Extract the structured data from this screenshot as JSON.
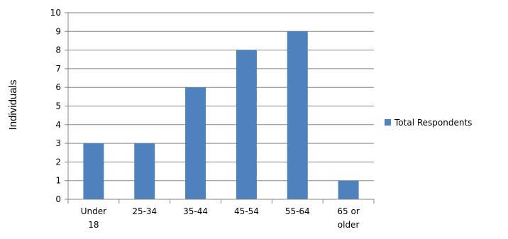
{
  "chart_data": {
    "type": "bar",
    "title": "",
    "xlabel": "",
    "ylabel": "Individuals",
    "categories": [
      [
        "Under",
        "18"
      ],
      [
        "25-34"
      ],
      [
        "35-44"
      ],
      [
        "45-54"
      ],
      [
        "55-64"
      ],
      [
        "65 or",
        "older"
      ]
    ],
    "series": [
      {
        "name": "Total Respondents",
        "values": [
          3,
          3,
          6,
          8,
          9,
          1
        ],
        "color": "#4f81bd"
      }
    ],
    "ylim": [
      0,
      10
    ],
    "yticks": [
      "0",
      "1",
      "2",
      "3",
      "4",
      "5",
      "6",
      "7",
      "8",
      "9",
      "10"
    ],
    "grid": true,
    "legend_position": "right",
    "colors": {
      "grid": "#868686",
      "axis": "#868686"
    }
  }
}
